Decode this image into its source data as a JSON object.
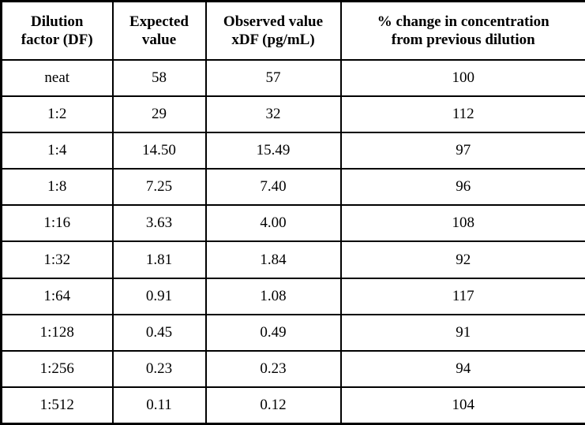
{
  "table": {
    "header": [
      "Dilution\nfactor (DF)",
      "Expected\nvalue",
      "Observed value\nxDF (pg/mL)",
      "% change in concentration\nfrom previous dilution"
    ],
    "rows": [
      [
        "neat",
        "58",
        "57",
        "100"
      ],
      [
        "1:2",
        "29",
        "32",
        "112"
      ],
      [
        "1:4",
        "14.50",
        "15.49",
        "97"
      ],
      [
        "1:8",
        "7.25",
        "7.40",
        "96"
      ],
      [
        "1:16",
        "3.63",
        "4.00",
        "108"
      ],
      [
        "1:32",
        "1.81",
        "1.84",
        "92"
      ],
      [
        "1:64",
        "0.91",
        "1.08",
        "117"
      ],
      [
        "1:128",
        "0.45",
        "0.49",
        "91"
      ],
      [
        "1:256",
        "0.23",
        "0.23",
        "94"
      ],
      [
        "1:512",
        "0.11",
        "0.12",
        "104"
      ]
    ]
  }
}
